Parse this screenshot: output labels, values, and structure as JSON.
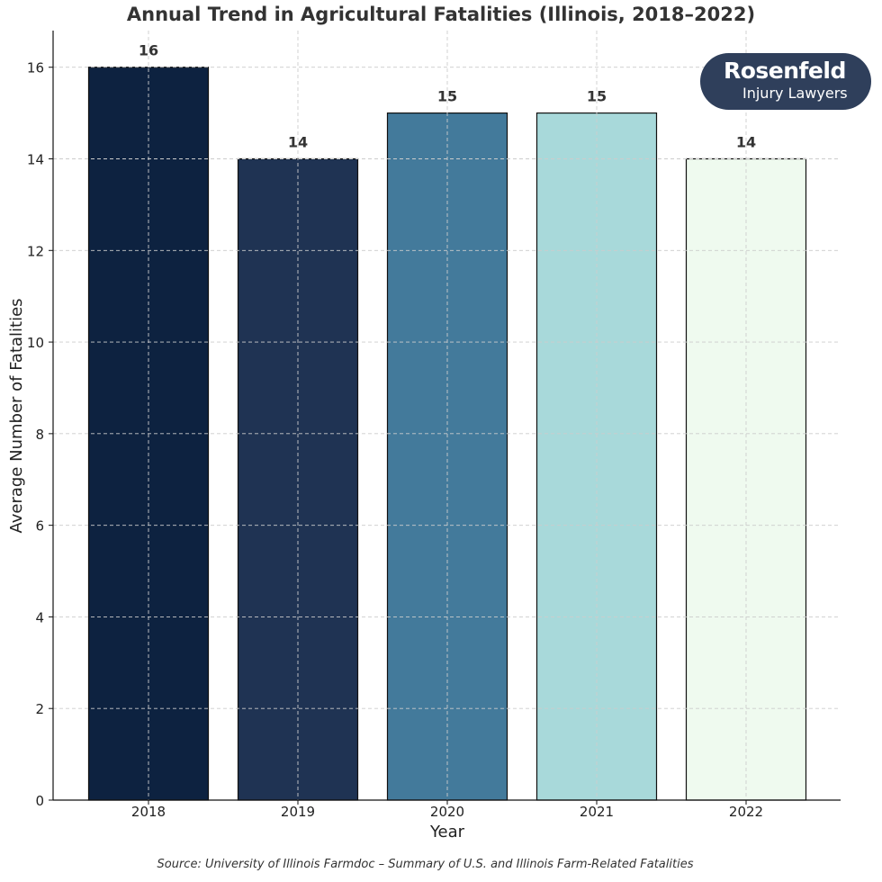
{
  "chart_data": {
    "type": "bar",
    "title": "Annual Trend in Agricultural Fatalities (Illinois, 2018–2022)",
    "xlabel": "Year",
    "ylabel": "Average Number of Fatalities",
    "categories": [
      "2018",
      "2019",
      "2020",
      "2021",
      "2022"
    ],
    "values": [
      16,
      14,
      15,
      15,
      14
    ],
    "data_labels": [
      "16",
      "14",
      "15",
      "15",
      "14"
    ],
    "bar_colors": [
      "#0d2240",
      "#1f3353",
      "#437a9b",
      "#a8d9da",
      "#effaef"
    ],
    "ylim": [
      0,
      16.8
    ],
    "yticks": [
      0,
      2,
      4,
      6,
      8,
      10,
      12,
      14,
      16
    ],
    "ytick_labels": [
      "0",
      "2",
      "4",
      "6",
      "8",
      "10",
      "12",
      "14",
      "16"
    ],
    "grid": true,
    "source": "Source: University of Illinois Farmdoc – Summary of U.S. and Illinois Farm-Related Fatalities"
  },
  "logo": {
    "line1": "Rosenfeld",
    "line2": "Injury Lawyers"
  },
  "colors": {
    "logo_background": "#2f3f5b",
    "text": "#333333",
    "grid": "#cccccc"
  }
}
